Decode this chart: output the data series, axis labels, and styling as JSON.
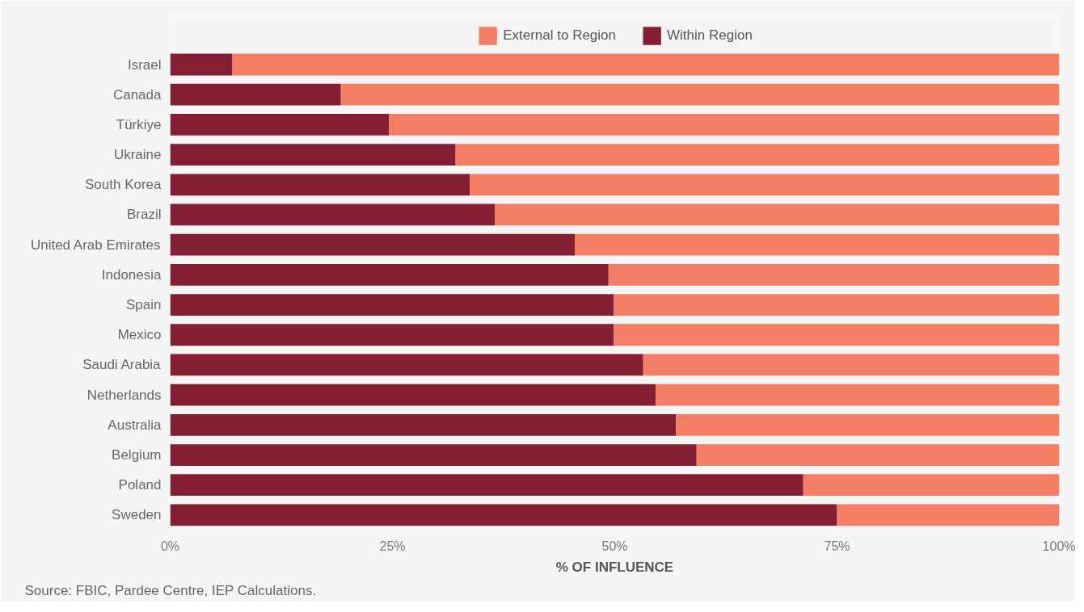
{
  "chart_data": {
    "type": "bar",
    "orientation": "horizontal",
    "stacked": true,
    "categories": [
      "Israel",
      "Canada",
      "Türkiye",
      "Ukraine",
      "South Korea",
      "Brazil",
      "United Arab Emirates",
      "Indonesia",
      "Spain",
      "Mexico",
      "Saudi Arabia",
      "Netherlands",
      "Australia",
      "Belgium",
      "Poland",
      "Sweden"
    ],
    "series": [
      {
        "name": "Within Region",
        "color": "#841f33",
        "values": [
          7.0,
          19.2,
          24.6,
          32.1,
          33.7,
          36.5,
          45.5,
          49.3,
          49.9,
          49.9,
          53.2,
          54.6,
          56.9,
          59.2,
          71.2,
          75.0
        ]
      },
      {
        "name": "External to Region",
        "color": "#f37e63",
        "values": [
          93.0,
          80.8,
          75.4,
          67.9,
          66.3,
          63.5,
          54.5,
          50.7,
          50.1,
          50.1,
          46.8,
          45.4,
          43.1,
          40.8,
          28.8,
          25.0
        ]
      }
    ],
    "xlim": [
      0,
      100
    ],
    "xticks": [
      {
        "value": 0,
        "label": "0%"
      },
      {
        "value": 25,
        "label": "25%"
      },
      {
        "value": 50,
        "label": "50%"
      },
      {
        "value": 75,
        "label": "75%"
      },
      {
        "value": 100,
        "label": "100%"
      }
    ],
    "xlabel": "% OF INFLUENCE",
    "legend": "top",
    "grid": false,
    "annotations": [
      "Source: FBIC, Pardee Centre, IEP Calculations."
    ]
  }
}
